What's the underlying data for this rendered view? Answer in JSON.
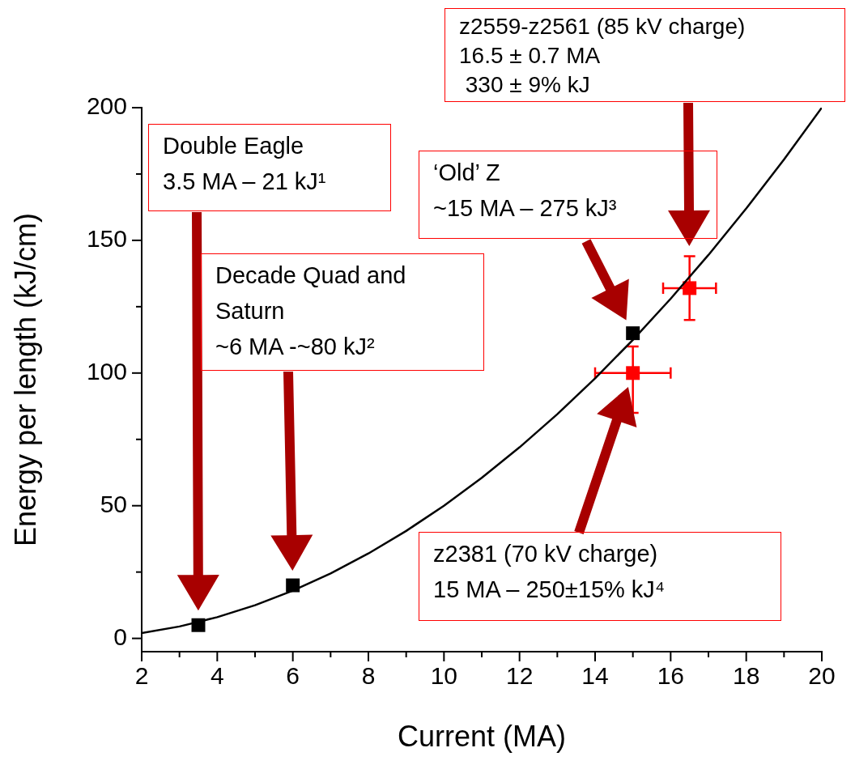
{
  "chart_data": {
    "type": "scatter",
    "xlabel": "Current (MA)",
    "ylabel": "Energy per length (kJ/cm)",
    "xlim": [
      2,
      20
    ],
    "ylim": [
      -5,
      200
    ],
    "xticks": [
      2,
      {
        "value": 3,
        "label": null
      },
      4,
      {
        "value": 5,
        "label": null
      },
      6,
      {
        "value": 7,
        "label": null
      },
      8,
      {
        "value": 9,
        "label": null
      },
      10,
      {
        "value": 11,
        "label": null
      },
      12,
      {
        "value": 13,
        "label": null
      },
      14,
      {
        "value": 15,
        "label": null
      },
      16,
      {
        "value": 17,
        "label": null
      },
      18,
      {
        "value": 19,
        "label": null
      },
      20
    ],
    "yticks": [
      0,
      {
        "value": 25,
        "label": null
      },
      50,
      {
        "value": 75,
        "label": null
      },
      100,
      {
        "value": 125,
        "label": null
      },
      150,
      {
        "value": 175,
        "label": null
      },
      200
    ],
    "grid": false,
    "legend": false,
    "series": [
      {
        "type": "line",
        "color": "#000000",
        "marker": "none",
        "x": [
          2,
          3,
          4,
          5,
          6,
          7,
          8,
          9,
          10,
          11,
          12,
          13,
          14,
          15,
          16,
          17,
          18,
          19,
          20
        ],
        "values": [
          2,
          4.5,
          8,
          12.5,
          18,
          24.5,
          32,
          40.5,
          50,
          60.5,
          72,
          84.5,
          98,
          112.5,
          128,
          144.5,
          162,
          180.5,
          200
        ]
      },
      {
        "type": "scatter",
        "color": "#000000",
        "marker": "square",
        "x": [
          3.5,
          6,
          15
        ],
        "values": [
          5,
          20,
          115
        ]
      },
      {
        "type": "scatter",
        "color": "#ff0000",
        "marker": "square",
        "x": [
          15,
          16.5
        ],
        "values": [
          100,
          132
        ],
        "errors": [
          [
            85,
            110
          ],
          12
        ],
        "xerrors": [
          1,
          0.7
        ]
      }
    ],
    "annotations": [
      "Double Eagle\n3.5 MA – 21 kJ¹",
      "Decade Quad and\nSaturn\n~6 MA -~80 kJ²",
      "‘Old’ Z\n~15 MA – 275 kJ³",
      "z2381 (70 kV charge)\n15 MA – 250±15% kJ⁴",
      "z2559-z2561 (85 kV charge)\n16.5 ± 0.7 MA\n 330 ± 9% kJ"
    ]
  }
}
